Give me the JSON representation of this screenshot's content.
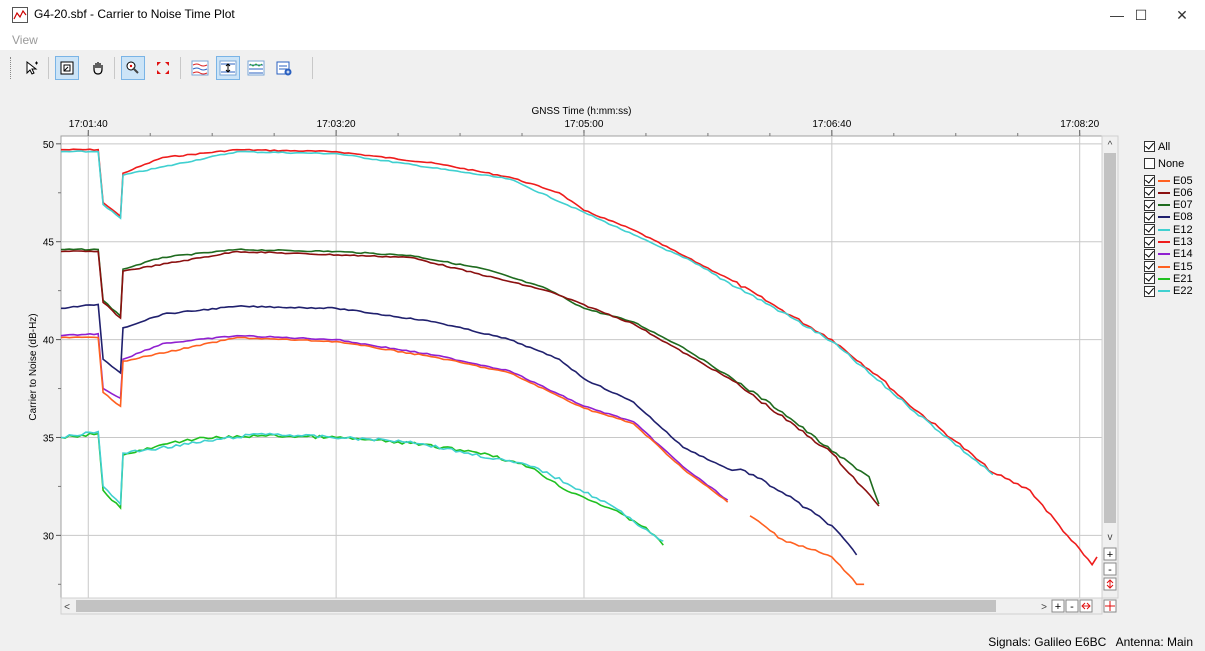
{
  "window": {
    "title": "G4-20.sbf - Carrier to Noise Time Plot",
    "minimize_glyph": "—",
    "maximize_glyph": "☐",
    "close_glyph": "✕"
  },
  "menu": {
    "view_label": "View"
  },
  "toolbar": {
    "buttons": [
      {
        "name": "select-pointer-icon",
        "active": false
      },
      {
        "name": "zoom-box-icon",
        "active": true
      },
      {
        "name": "pan-hand-icon",
        "active": false
      },
      {
        "name": "point-tracker-icon",
        "active": true
      },
      {
        "name": "fit-all-icon",
        "active": false
      },
      {
        "name": "multi-plot-icon",
        "active": false
      },
      {
        "name": "range-markers-icon",
        "active": true
      },
      {
        "name": "stacked-plots-icon",
        "active": false
      },
      {
        "name": "export-data-icon",
        "active": false
      }
    ]
  },
  "status": {
    "signals": "Signals: Galileo E6BC",
    "antenna": "Antenna: Main"
  },
  "legend": {
    "all_label": "All",
    "none_label": "None",
    "items": [
      {
        "label": "E05",
        "color": "#ff6020",
        "checked": true
      },
      {
        "label": "E06",
        "color": "#8b1010",
        "checked": true
      },
      {
        "label": "E07",
        "color": "#1f6b1f",
        "checked": true
      },
      {
        "label": "E08",
        "color": "#20206e",
        "checked": true
      },
      {
        "label": "E12",
        "color": "#40d0d0",
        "checked": true
      },
      {
        "label": "E13",
        "color": "#ee1c1c",
        "checked": true
      },
      {
        "label": "E14",
        "color": "#9020d0",
        "checked": true
      },
      {
        "label": "E15",
        "color": "#ff6020",
        "checked": true
      },
      {
        "label": "E21",
        "color": "#20c020",
        "checked": true
      },
      {
        "label": "E22",
        "color": "#40d0d0",
        "checked": true
      }
    ]
  },
  "chart_data": {
    "type": "line",
    "title": "",
    "xlabel": "GNSS Time (h:mm:ss)",
    "ylabel": "Carrier to Noise (dB-Hz)",
    "x_ticks": [
      "17:01:40",
      "17:03:20",
      "17:05:00",
      "17:06:40",
      "17:08:20"
    ],
    "y_ticks": [
      50,
      45,
      40,
      35,
      30
    ],
    "xlim": [
      "17:01:29",
      "17:08:29"
    ],
    "ylim": [
      26.8,
      50.4
    ],
    "grid": true,
    "legend_placement": "right",
    "series": [
      {
        "name": "E13",
        "color": "#ee1c1c",
        "points": [
          [
            "17:01:29",
            49.7
          ],
          [
            "17:01:44",
            49.7
          ],
          [
            "17:01:46",
            47.0
          ],
          [
            "17:01:53",
            46.3
          ],
          [
            "17:01:54",
            48.5
          ],
          [
            "17:02:10",
            49.3
          ],
          [
            "17:02:40",
            49.7
          ],
          [
            "17:03:20",
            49.6
          ],
          [
            "17:04:00",
            49.0
          ],
          [
            "17:04:30",
            48.3
          ],
          [
            "17:04:50",
            47.5
          ],
          [
            "17:05:00",
            46.6
          ],
          [
            "17:05:20",
            45.6
          ],
          [
            "17:05:40",
            44.3
          ],
          [
            "17:06:00",
            43.0
          ],
          [
            "17:06:20",
            41.5
          ],
          [
            "17:06:40",
            40.0
          ],
          [
            "17:07:00",
            38.0
          ],
          [
            "17:07:10",
            36.8
          ],
          [
            "17:07:30",
            34.8
          ],
          [
            "17:07:45",
            33.2
          ],
          [
            "17:08:00",
            32.3
          ],
          [
            "17:08:15",
            30.0
          ],
          [
            "17:08:25",
            28.5
          ],
          [
            "17:08:27",
            28.9
          ]
        ]
      },
      {
        "name": "E22",
        "color": "#40d0d0",
        "points": [
          [
            "17:01:29",
            49.6
          ],
          [
            "17:01:44",
            49.6
          ],
          [
            "17:01:46",
            46.9
          ],
          [
            "17:01:53",
            46.2
          ],
          [
            "17:01:54",
            48.4
          ],
          [
            "17:02:40",
            49.6
          ],
          [
            "17:03:20",
            49.5
          ],
          [
            "17:04:30",
            48.2
          ],
          [
            "17:05:00",
            46.5
          ],
          [
            "17:05:40",
            44.2
          ],
          [
            "17:06:20",
            41.4
          ],
          [
            "17:06:40",
            39.9
          ],
          [
            "17:07:10",
            36.7
          ],
          [
            "17:07:45",
            33.1
          ]
        ]
      },
      {
        "name": "E07",
        "color": "#1f6b1f",
        "points": [
          [
            "17:01:29",
            44.6
          ],
          [
            "17:01:44",
            44.6
          ],
          [
            "17:01:46",
            42.0
          ],
          [
            "17:01:53",
            41.2
          ],
          [
            "17:01:54",
            43.6
          ],
          [
            "17:02:10",
            44.2
          ],
          [
            "17:02:40",
            44.6
          ],
          [
            "17:03:20",
            44.5
          ],
          [
            "17:03:50",
            44.3
          ],
          [
            "17:04:20",
            43.6
          ],
          [
            "17:04:45",
            42.6
          ],
          [
            "17:05:00",
            41.6
          ],
          [
            "17:05:20",
            40.9
          ],
          [
            "17:05:40",
            39.6
          ],
          [
            "17:06:00",
            38.0
          ],
          [
            "17:06:20",
            36.3
          ],
          [
            "17:06:40",
            34.3
          ],
          [
            "17:06:55",
            33.0
          ],
          [
            "17:06:59",
            31.6
          ]
        ]
      },
      {
        "name": "E06",
        "color": "#8b1010",
        "points": [
          [
            "17:01:29",
            44.5
          ],
          [
            "17:01:44",
            44.5
          ],
          [
            "17:01:46",
            41.9
          ],
          [
            "17:01:53",
            41.1
          ],
          [
            "17:01:54",
            43.5
          ],
          [
            "17:02:40",
            44.5
          ],
          [
            "17:03:50",
            44.2
          ],
          [
            "17:04:45",
            42.5
          ],
          [
            "17:05:20",
            40.8
          ],
          [
            "17:06:00",
            37.9
          ],
          [
            "17:06:40",
            34.2
          ],
          [
            "17:06:59",
            31.5
          ]
        ]
      },
      {
        "name": "E08",
        "color": "#20206e",
        "points": [
          [
            "17:01:29",
            41.6
          ],
          [
            "17:01:44",
            41.8
          ],
          [
            "17:01:46",
            39.0
          ],
          [
            "17:01:53",
            38.3
          ],
          [
            "17:01:54",
            40.6
          ],
          [
            "17:02:10",
            41.3
          ],
          [
            "17:02:40",
            41.7
          ],
          [
            "17:03:20",
            41.6
          ],
          [
            "17:04:00",
            40.9
          ],
          [
            "17:04:30",
            40.0
          ],
          [
            "17:04:50",
            39.0
          ],
          [
            "17:05:00",
            38.0
          ],
          [
            "17:05:20",
            36.8
          ],
          [
            "17:05:40",
            34.5
          ],
          [
            "17:05:58",
            33.4
          ],
          [
            "17:06:05",
            33.3
          ],
          [
            "17:06:20",
            32.2
          ],
          [
            "17:06:40",
            30.5
          ],
          [
            "17:06:50",
            29.0
          ]
        ]
      },
      {
        "name": "E14",
        "color": "#9020d0",
        "points": [
          [
            "17:01:29",
            40.2
          ],
          [
            "17:01:44",
            40.3
          ],
          [
            "17:01:46",
            37.5
          ],
          [
            "17:01:53",
            37.0
          ],
          [
            "17:01:54",
            39.0
          ],
          [
            "17:02:10",
            39.8
          ],
          [
            "17:02:40",
            40.2
          ],
          [
            "17:03:20",
            40.0
          ],
          [
            "17:04:00",
            39.2
          ],
          [
            "17:04:30",
            38.4
          ],
          [
            "17:04:50",
            37.2
          ],
          [
            "17:05:00",
            36.6
          ],
          [
            "17:05:20",
            35.8
          ],
          [
            "17:05:40",
            33.5
          ],
          [
            "17:05:58",
            31.8
          ]
        ]
      },
      {
        "name": "E05",
        "color": "#ff6020",
        "points": [
          [
            "17:01:29",
            40.1
          ],
          [
            "17:01:44",
            40.1
          ],
          [
            "17:01:46",
            37.3
          ],
          [
            "17:01:53",
            36.6
          ],
          [
            "17:01:54",
            38.9
          ],
          [
            "17:02:40",
            40.1
          ],
          [
            "17:03:20",
            39.9
          ],
          [
            "17:04:00",
            39.1
          ],
          [
            "17:04:30",
            38.3
          ],
          [
            "17:04:50",
            37.1
          ],
          [
            "17:05:00",
            36.5
          ],
          [
            "17:05:20",
            35.7
          ],
          [
            "17:05:40",
            33.4
          ],
          [
            "17:05:58",
            31.7
          ]
        ]
      },
      {
        "name": "E15",
        "color": "#ff6020",
        "points": [
          [
            "17:06:07",
            31.0
          ],
          [
            "17:06:20",
            29.8
          ],
          [
            "17:06:40",
            28.9
          ],
          [
            "17:06:50",
            27.5
          ],
          [
            "17:06:53",
            27.5
          ]
        ]
      },
      {
        "name": "E21",
        "color": "#20c020",
        "points": [
          [
            "17:01:29",
            35.0
          ],
          [
            "17:01:44",
            35.2
          ],
          [
            "17:01:46",
            32.3
          ],
          [
            "17:01:53",
            31.4
          ],
          [
            "17:01:54",
            34.1
          ],
          [
            "17:02:20",
            34.9
          ],
          [
            "17:02:50",
            35.1
          ],
          [
            "17:03:20",
            35.0
          ],
          [
            "17:03:50",
            34.7
          ],
          [
            "17:04:20",
            34.2
          ],
          [
            "17:04:40",
            33.4
          ],
          [
            "17:04:50",
            32.5
          ],
          [
            "17:05:10",
            31.4
          ],
          [
            "17:05:25",
            30.4
          ],
          [
            "17:05:32",
            29.5
          ]
        ]
      },
      {
        "name": "E12",
        "color": "#40d0d0",
        "points": [
          [
            "17:01:29",
            35.0
          ],
          [
            "17:01:44",
            35.3
          ],
          [
            "17:01:46",
            32.5
          ],
          [
            "17:01:53",
            31.6
          ],
          [
            "17:01:54",
            34.2
          ],
          [
            "17:02:50",
            35.2
          ],
          [
            "17:03:50",
            34.8
          ],
          [
            "17:04:40",
            33.5
          ],
          [
            "17:05:10",
            31.6
          ],
          [
            "17:05:32",
            29.7
          ]
        ]
      }
    ]
  }
}
